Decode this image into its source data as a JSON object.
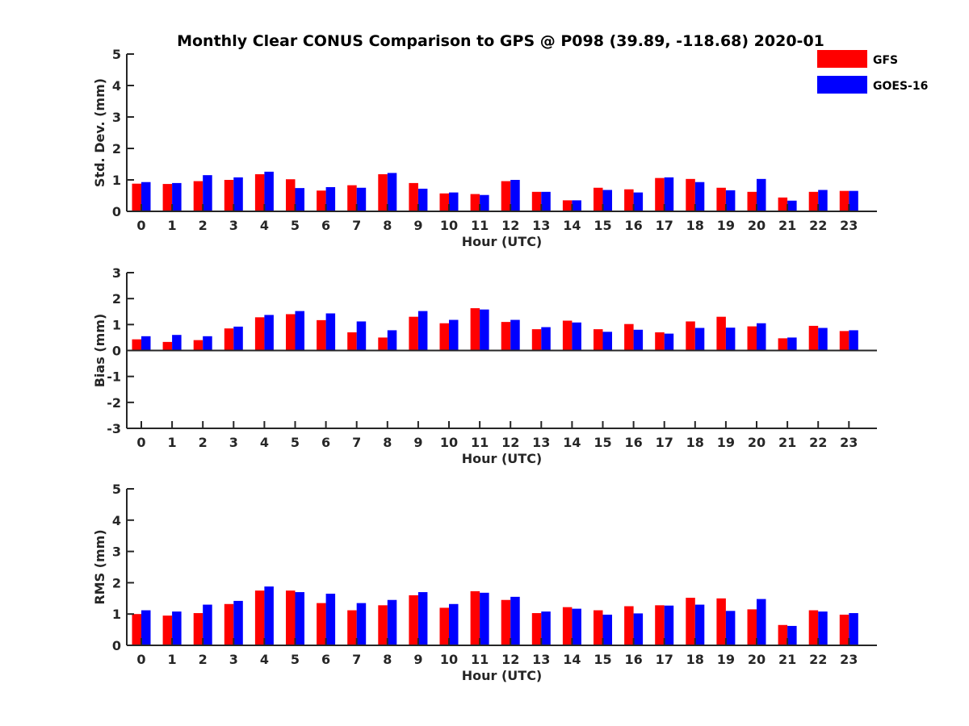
{
  "chart_data": [
    {
      "type": "bar",
      "title": "Monthly Clear CONUS Comparison to GPS @ P098 (39.89, -118.68) 2020-01",
      "xlabel": "Hour (UTC)",
      "ylabel": "Std. Dev. (mm)",
      "ylim": [
        0,
        5
      ],
      "yticks": [
        "0",
        "1",
        "2",
        "3",
        "4",
        "5"
      ],
      "categories": [
        "0",
        "1",
        "2",
        "3",
        "4",
        "5",
        "6",
        "7",
        "8",
        "9",
        "10",
        "11",
        "12",
        "13",
        "14",
        "15",
        "16",
        "17",
        "18",
        "19",
        "20",
        "21",
        "22",
        "23"
      ],
      "series": [
        {
          "name": "GFS",
          "color": "#ff0000",
          "values": [
            0.88,
            0.87,
            0.96,
            1.0,
            1.18,
            1.02,
            0.66,
            0.83,
            1.18,
            0.9,
            0.57,
            0.55,
            0.96,
            0.62,
            0.35,
            0.75,
            0.7,
            1.06,
            1.03,
            0.75,
            0.62,
            0.44,
            0.62,
            0.65
          ]
        },
        {
          "name": "GOES-16",
          "color": "#0000ff",
          "values": [
            0.93,
            0.9,
            1.15,
            1.08,
            1.26,
            0.74,
            0.77,
            0.75,
            1.22,
            0.72,
            0.6,
            0.52,
            1.0,
            0.62,
            0.35,
            0.68,
            0.6,
            1.08,
            0.93,
            0.67,
            1.03,
            0.34,
            0.68,
            0.65
          ]
        }
      ],
      "legend": "top-right"
    },
    {
      "type": "bar",
      "xlabel": "Hour (UTC)",
      "ylabel": "Bias (mm)",
      "ylim": [
        -3,
        3
      ],
      "yticks": [
        "-3",
        "-2",
        "-1",
        "0",
        "1",
        "2",
        "3"
      ],
      "categories": [
        "0",
        "1",
        "2",
        "3",
        "4",
        "5",
        "6",
        "7",
        "8",
        "9",
        "10",
        "11",
        "12",
        "13",
        "14",
        "15",
        "16",
        "17",
        "18",
        "19",
        "20",
        "21",
        "22",
        "23"
      ],
      "series": [
        {
          "name": "GFS",
          "color": "#ff0000",
          "values": [
            0.43,
            0.33,
            0.4,
            0.85,
            1.28,
            1.4,
            1.17,
            0.7,
            0.5,
            1.3,
            1.05,
            1.63,
            1.1,
            0.82,
            1.15,
            0.82,
            1.02,
            0.7,
            1.12,
            1.3,
            0.93,
            0.47,
            0.95,
            0.75
          ]
        },
        {
          "name": "GOES-16",
          "color": "#0000ff",
          "values": [
            0.55,
            0.6,
            0.55,
            0.92,
            1.37,
            1.52,
            1.43,
            1.12,
            0.78,
            1.52,
            1.18,
            1.58,
            1.18,
            0.9,
            1.08,
            0.72,
            0.8,
            0.65,
            0.87,
            0.88,
            1.05,
            0.5,
            0.87,
            0.78
          ]
        }
      ]
    },
    {
      "type": "bar",
      "xlabel": "Hour (UTC)",
      "ylabel": "RMS (mm)",
      "ylim": [
        0,
        5
      ],
      "yticks": [
        "0",
        "1",
        "2",
        "3",
        "4",
        "5"
      ],
      "categories": [
        "0",
        "1",
        "2",
        "3",
        "4",
        "5",
        "6",
        "7",
        "8",
        "9",
        "10",
        "11",
        "12",
        "13",
        "14",
        "15",
        "16",
        "17",
        "18",
        "19",
        "20",
        "21",
        "22",
        "23"
      ],
      "series": [
        {
          "name": "GFS",
          "color": "#ff0000",
          "values": [
            1.0,
            0.95,
            1.03,
            1.32,
            1.75,
            1.75,
            1.35,
            1.12,
            1.28,
            1.6,
            1.2,
            1.73,
            1.45,
            1.03,
            1.22,
            1.12,
            1.25,
            1.28,
            1.52,
            1.5,
            1.15,
            0.65,
            1.12,
            0.98
          ]
        },
        {
          "name": "GOES-16",
          "color": "#0000ff",
          "values": [
            1.12,
            1.08,
            1.3,
            1.42,
            1.88,
            1.7,
            1.65,
            1.35,
            1.45,
            1.7,
            1.32,
            1.68,
            1.55,
            1.08,
            1.17,
            0.98,
            1.02,
            1.27,
            1.3,
            1.1,
            1.48,
            0.62,
            1.08,
            1.03
          ]
        }
      ]
    }
  ]
}
